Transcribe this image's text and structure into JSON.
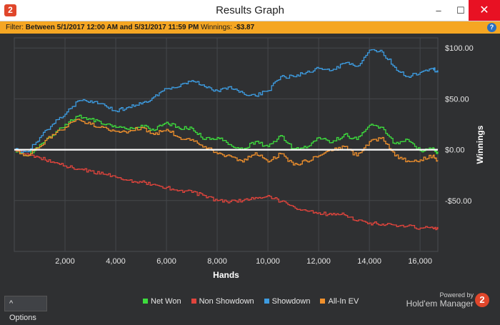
{
  "window": {
    "title": "Results Graph",
    "icon_text": "2",
    "controls": {
      "minimize": "–",
      "maximize": "☐",
      "close": "✕"
    }
  },
  "filter": {
    "prefix": "Filter:",
    "text": "Between 5/1/2017 12:00 AM and 5/31/2017 11:59 PM",
    "winnings_label": "Winnings:",
    "winnings_value": "-$3.87",
    "help_icon": "?"
  },
  "options_button": {
    "arrow": "^",
    "label": "Options"
  },
  "branding": {
    "powered": "Powered by",
    "product": "Hold'em Manager",
    "logo_text": "2"
  },
  "colors": {
    "net_won": "#3ddc3d",
    "non_showdown": "#e0443c",
    "showdown": "#3d9be0",
    "all_in_ev": "#f0902c",
    "zero_line": "#ffffff",
    "background": "#2f3032",
    "filter_bar": "#f5a623"
  },
  "chart_data": {
    "type": "line",
    "xlabel": "Hands",
    "ylabel": "Winnings",
    "xlim": [
      0,
      16700
    ],
    "ylim": [
      -100,
      110
    ],
    "x_ticks": [
      2000,
      4000,
      6000,
      8000,
      10000,
      12000,
      14000,
      16000
    ],
    "x_tick_labels": [
      "2,000",
      "4,000",
      "6,000",
      "8,000",
      "10,000",
      "12,000",
      "14,000",
      "16,000"
    ],
    "y_ticks": [
      100,
      50,
      0,
      -50
    ],
    "y_tick_labels": [
      "$100.00",
      "$50.00",
      "$0.00",
      "-$50.00"
    ],
    "grid": true,
    "legend_position": "bottom",
    "x": [
      0,
      500,
      1000,
      1500,
      2000,
      2500,
      3000,
      3500,
      4000,
      4500,
      5000,
      5500,
      6000,
      6500,
      7000,
      7500,
      8000,
      8500,
      9000,
      9500,
      10000,
      10500,
      11000,
      11500,
      12000,
      12500,
      13000,
      13500,
      14000,
      14500,
      15000,
      15500,
      16000,
      16500,
      16700
    ],
    "series": [
      {
        "name": "Net Won",
        "values": [
          0,
          -6,
          5,
          14,
          25,
          33,
          30,
          25,
          22,
          20,
          24,
          19,
          27,
          21,
          21,
          10,
          12,
          5,
          0,
          8,
          3,
          14,
          1,
          2,
          12,
          7,
          15,
          10,
          24,
          22,
          6,
          10,
          -1,
          2,
          -4
        ]
      },
      {
        "name": "Non Showdown",
        "values": [
          0,
          -4,
          -8,
          -12,
          -16,
          -19,
          -21,
          -24,
          -27,
          -30,
          -32,
          -34,
          -37,
          -40,
          -42,
          -45,
          -50,
          -51,
          -50,
          -47,
          -45,
          -51,
          -56,
          -60,
          -62,
          -64,
          -64,
          -70,
          -72,
          -73,
          -74,
          -75,
          -77,
          -77,
          -78
        ]
      },
      {
        "name": "Showdown",
        "values": [
          0,
          -2,
          12,
          25,
          35,
          48,
          48,
          45,
          38,
          42,
          45,
          52,
          60,
          62,
          68,
          62,
          58,
          62,
          56,
          53,
          58,
          72,
          72,
          76,
          80,
          78,
          85,
          82,
          98,
          96,
          81,
          72,
          76,
          80,
          76
        ]
      },
      {
        "name": "All-In EV",
        "values": [
          0,
          -6,
          3,
          15,
          22,
          30,
          25,
          22,
          18,
          18,
          22,
          15,
          20,
          12,
          10,
          3,
          -4,
          -6,
          -12,
          -3,
          -12,
          -4,
          -15,
          -11,
          -6,
          -1,
          3,
          -6,
          8,
          12,
          -6,
          -11,
          -10,
          -6,
          -11
        ]
      }
    ]
  }
}
